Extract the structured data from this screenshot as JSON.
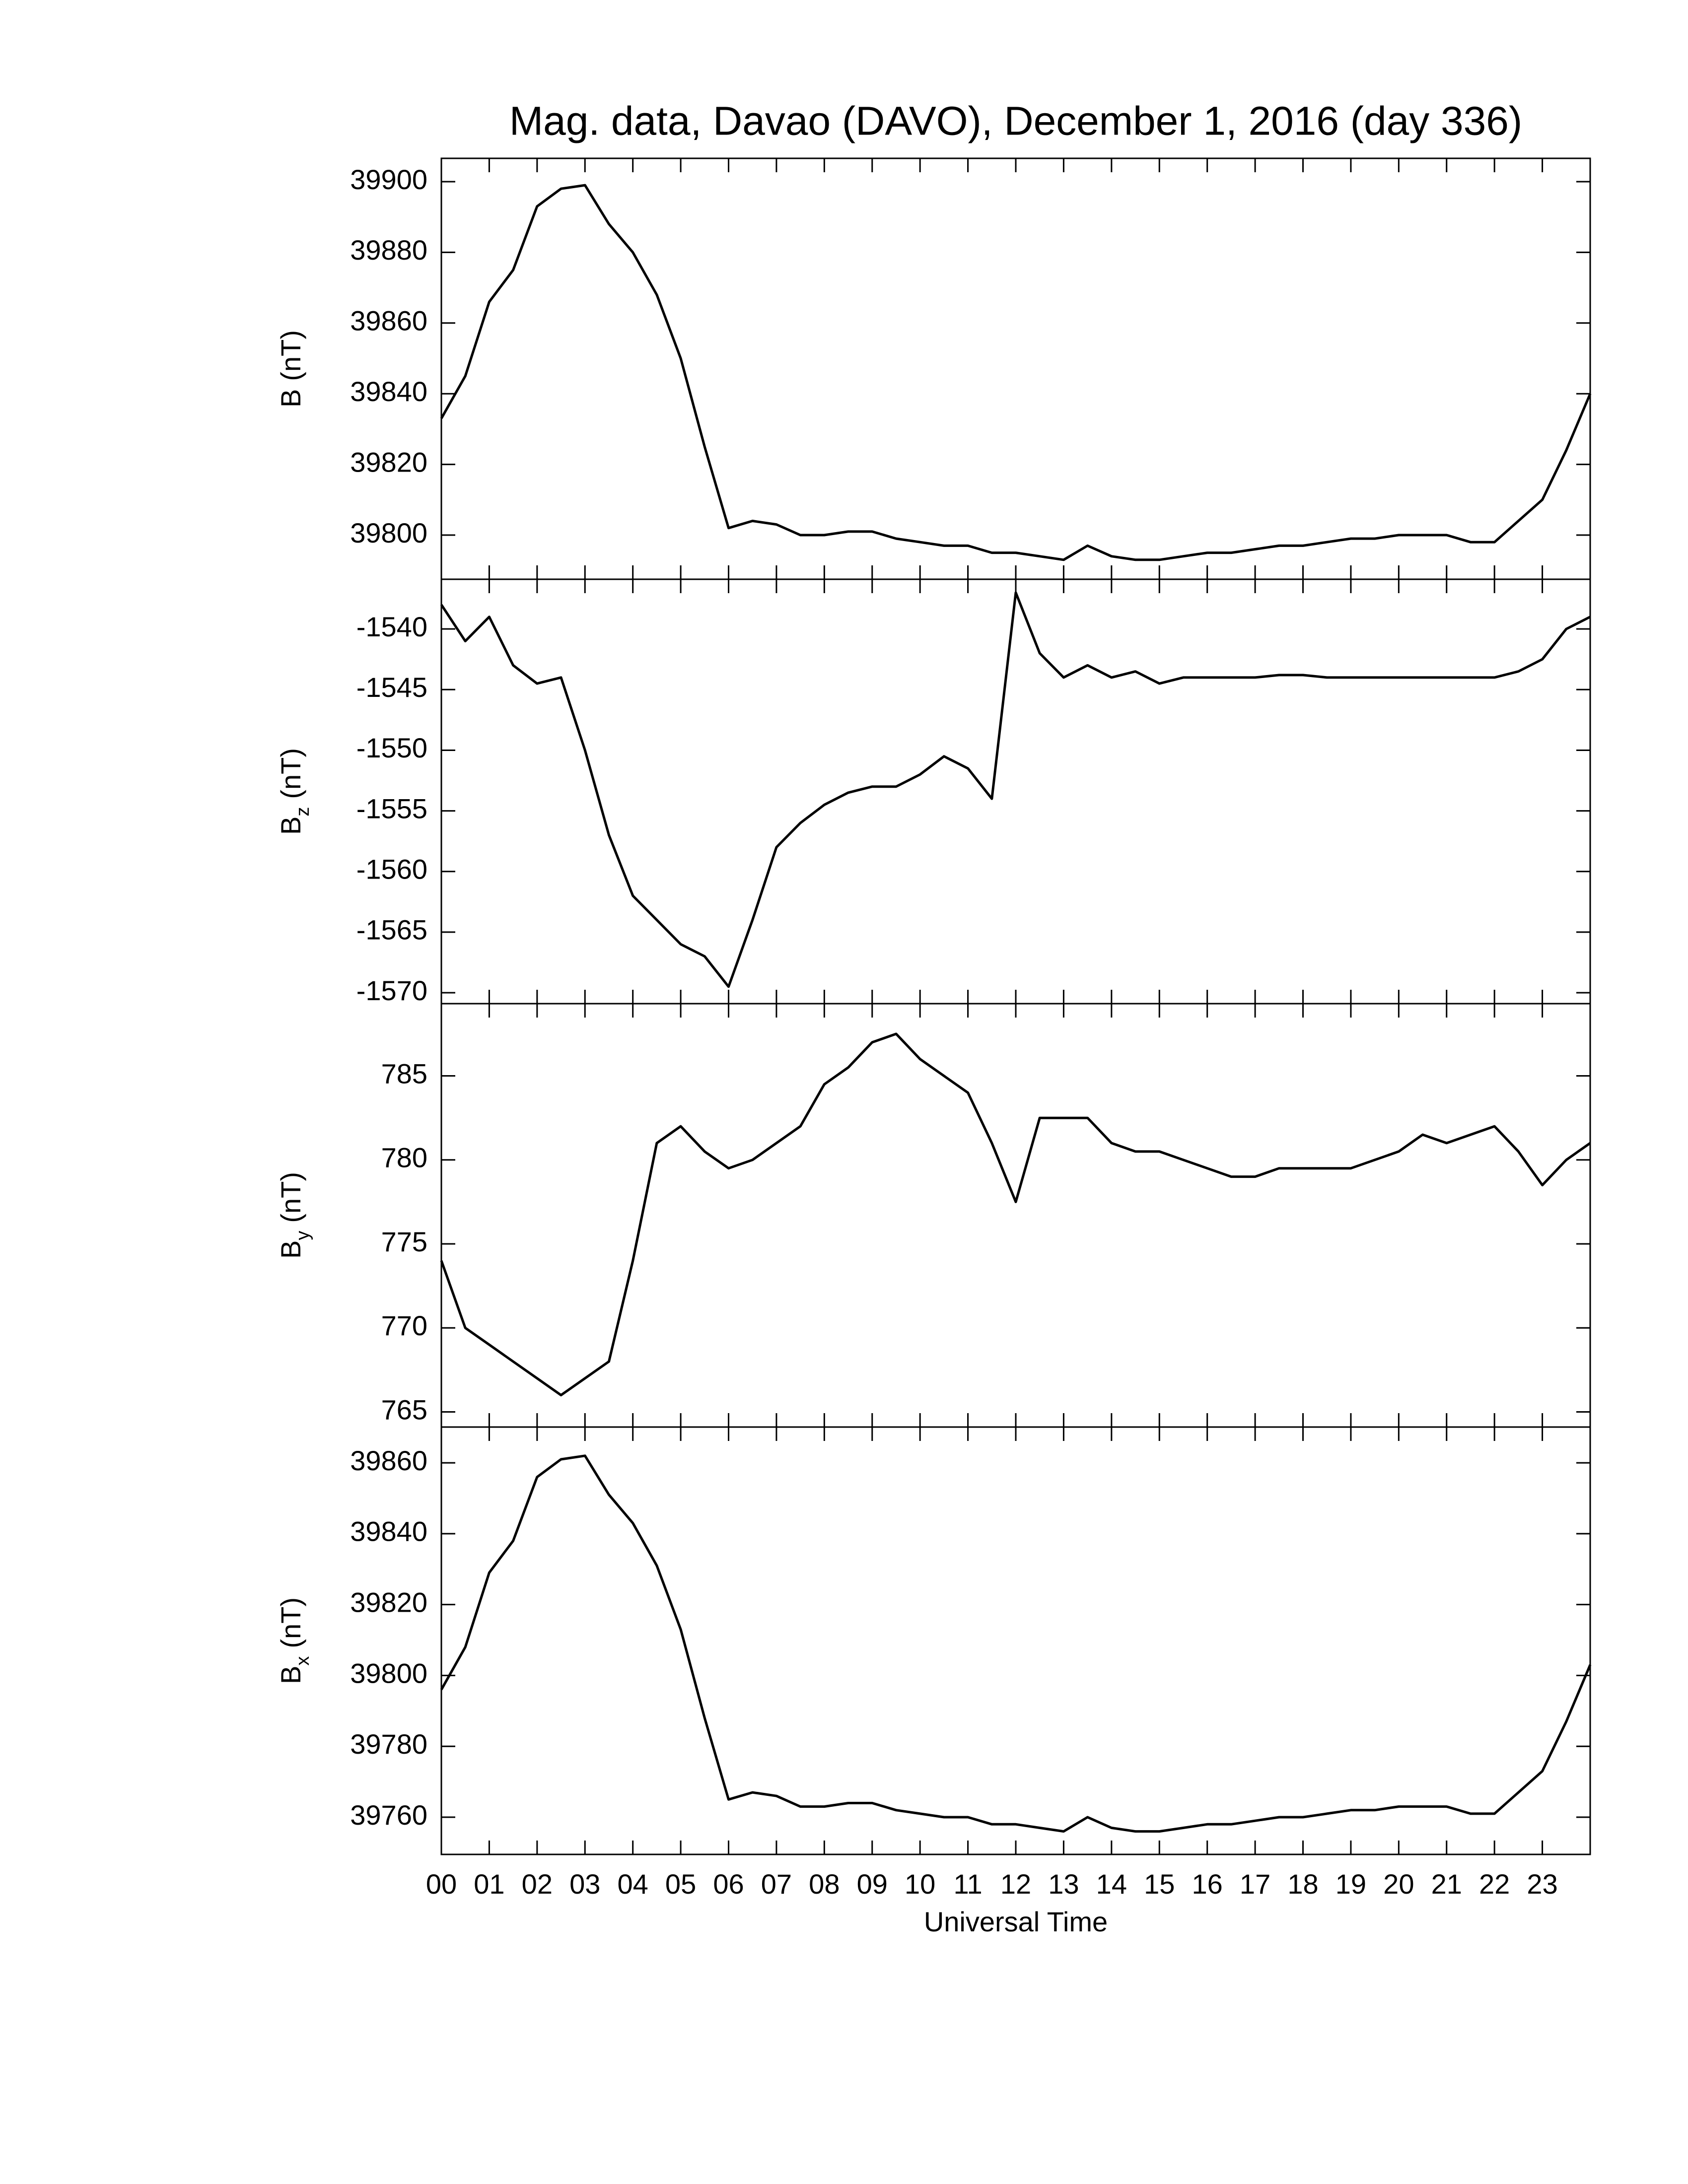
{
  "chart_data": [
    {
      "type": "line",
      "title": "Mag. data, Davao (DAVO), December 1, 2016 (day 336)",
      "ylabel": {
        "base": "B",
        "unit": "(nT)"
      },
      "xlim": [
        0,
        24
      ],
      "ylim": [
        39787.5,
        39906.6
      ],
      "yticks": [
        39800,
        39820,
        39840,
        39860,
        39880,
        39900
      ],
      "x": [
        0,
        0.5,
        1,
        1.5,
        2,
        2.5,
        3,
        3.5,
        4,
        4.5,
        5,
        5.5,
        6,
        6.5,
        7,
        7.5,
        8,
        8.5,
        9,
        9.5,
        10,
        10.5,
        11,
        11.5,
        12,
        12.5,
        13,
        13.5,
        14,
        14.5,
        15,
        15.5,
        16,
        16.5,
        17,
        17.5,
        18,
        18.5,
        19,
        19.5,
        20,
        20.5,
        21,
        21.5,
        22,
        22.5,
        23,
        23.5,
        24
      ],
      "series": [
        {
          "color": "#000000",
          "values": [
            39833,
            39845,
            39866,
            39875,
            39893,
            39898,
            39899,
            39888,
            39880,
            39868,
            39850,
            39825,
            39802,
            39804,
            39803,
            39800,
            39800,
            39801,
            39801,
            39799,
            39798,
            39797,
            39797,
            39795,
            39795,
            39794,
            39793,
            39797,
            39794,
            39793,
            39793,
            39794,
            39795,
            39795,
            39796,
            39797,
            39797,
            39798,
            39799,
            39799,
            39800,
            39800,
            39800,
            39798,
            39798,
            39804,
            39810,
            39824,
            39840
          ]
        }
      ]
    },
    {
      "type": "line",
      "ylabel": {
        "base": "B",
        "sub": "z",
        "unit": "(nT)"
      },
      "xlim": [
        0,
        24
      ],
      "ylim": [
        -1570.9,
        -1535.9
      ],
      "yticks": [
        -1570,
        -1565,
        -1560,
        -1555,
        -1550,
        -1545,
        -1540
      ],
      "x": [
        0,
        0.5,
        1,
        1.5,
        2,
        2.5,
        3,
        3.5,
        4,
        4.5,
        5,
        5.5,
        6,
        6.5,
        7,
        7.5,
        8,
        8.5,
        9,
        9.5,
        10,
        10.5,
        11,
        11.5,
        12,
        12.5,
        13,
        13.5,
        14,
        14.5,
        15,
        15.5,
        16,
        16.5,
        17,
        17.5,
        18,
        18.5,
        19,
        19.5,
        20,
        20.5,
        21,
        21.5,
        22,
        22.5,
        23,
        23.5,
        24
      ],
      "series": [
        {
          "color": "#000000",
          "values": [
            -1538,
            -1541,
            -1539,
            -1543,
            -1544.5,
            -1544,
            -1550,
            -1557,
            -1562,
            -1564,
            -1566,
            -1567,
            -1569.5,
            -1564,
            -1558,
            -1556,
            -1554.5,
            -1553.5,
            -1553,
            -1553,
            -1552,
            -1550.5,
            -1551.5,
            -1554,
            -1537,
            -1542,
            -1544,
            -1543,
            -1544,
            -1543.5,
            -1544.5,
            -1544,
            -1544,
            -1544,
            -1544,
            -1543.8,
            -1543.8,
            -1544,
            -1544,
            -1544,
            -1544,
            -1544,
            -1544,
            -1544,
            -1544,
            -1543.5,
            -1542.5,
            -1540,
            -1539
          ]
        }
      ]
    },
    {
      "type": "line",
      "ylabel": {
        "base": "B",
        "sub": "y",
        "unit": "(nT)"
      },
      "xlim": [
        0,
        24
      ],
      "ylim": [
        764.1,
        789.3
      ],
      "yticks": [
        765,
        770,
        775,
        780,
        785
      ],
      "x": [
        0,
        0.5,
        1,
        1.5,
        2,
        2.5,
        3,
        3.5,
        4,
        4.5,
        5,
        5.5,
        6,
        6.5,
        7,
        7.5,
        8,
        8.5,
        9,
        9.5,
        10,
        10.5,
        11,
        11.5,
        12,
        12.5,
        13,
        13.5,
        14,
        14.5,
        15,
        15.5,
        16,
        16.5,
        17,
        17.5,
        18,
        18.5,
        19,
        19.5,
        20,
        20.5,
        21,
        21.5,
        22,
        22.5,
        23,
        23.5,
        24
      ],
      "series": [
        {
          "color": "#000000",
          "values": [
            774,
            770,
            769,
            768,
            767,
            766,
            767,
            768,
            774,
            781,
            782,
            780.5,
            779.5,
            780,
            781,
            782,
            784.5,
            785.5,
            787,
            787.5,
            786,
            785,
            784,
            781,
            777.5,
            782.5,
            782.5,
            782.5,
            781,
            780.5,
            780.5,
            780,
            779.5,
            779,
            779,
            779.5,
            779.5,
            779.5,
            779.5,
            780,
            780.5,
            781.5,
            781,
            781.5,
            782,
            780.5,
            778.5,
            780,
            781
          ]
        }
      ]
    },
    {
      "type": "line",
      "ylabel": {
        "base": "B",
        "sub": "x",
        "unit": "(nT)"
      },
      "xlabel": "Universal Time",
      "xlim": [
        0,
        24
      ],
      "ylim": [
        39749.5,
        39870.1
      ],
      "yticks": [
        39760,
        39780,
        39800,
        39820,
        39840,
        39860
      ],
      "xticks": [
        {
          "value": 0,
          "label": "00"
        },
        {
          "value": 1,
          "label": "01"
        },
        {
          "value": 2,
          "label": "02"
        },
        {
          "value": 3,
          "label": "03"
        },
        {
          "value": 4,
          "label": "04"
        },
        {
          "value": 5,
          "label": "05"
        },
        {
          "value": 6,
          "label": "06"
        },
        {
          "value": 7,
          "label": "07"
        },
        {
          "value": 8,
          "label": "08"
        },
        {
          "value": 9,
          "label": "09"
        },
        10,
        11,
        12,
        13,
        14,
        15,
        16,
        17,
        18,
        19,
        20,
        21,
        22,
        23
      ],
      "x": [
        0,
        0.5,
        1,
        1.5,
        2,
        2.5,
        3,
        3.5,
        4,
        4.5,
        5,
        5.5,
        6,
        6.5,
        7,
        7.5,
        8,
        8.5,
        9,
        9.5,
        10,
        10.5,
        11,
        11.5,
        12,
        12.5,
        13,
        13.5,
        14,
        14.5,
        15,
        15.5,
        16,
        16.5,
        17,
        17.5,
        18,
        18.5,
        19,
        19.5,
        20,
        20.5,
        21,
        21.5,
        22,
        22.5,
        23,
        23.5,
        24
      ],
      "series": [
        {
          "color": "#000000",
          "values": [
            39796,
            39808,
            39829,
            39838,
            39856,
            39861,
            39862,
            39851,
            39843,
            39831,
            39813,
            39788,
            39765,
            39767,
            39766,
            39763,
            39763,
            39764,
            39764,
            39762,
            39761,
            39760,
            39760,
            39758,
            39758,
            39757,
            39756,
            39760,
            39757,
            39756,
            39756,
            39757,
            39758,
            39758,
            39759,
            39760,
            39760,
            39761,
            39762,
            39762,
            39763,
            39763,
            39763,
            39761,
            39761,
            39767,
            39773,
            39787,
            39803
          ]
        }
      ]
    }
  ]
}
